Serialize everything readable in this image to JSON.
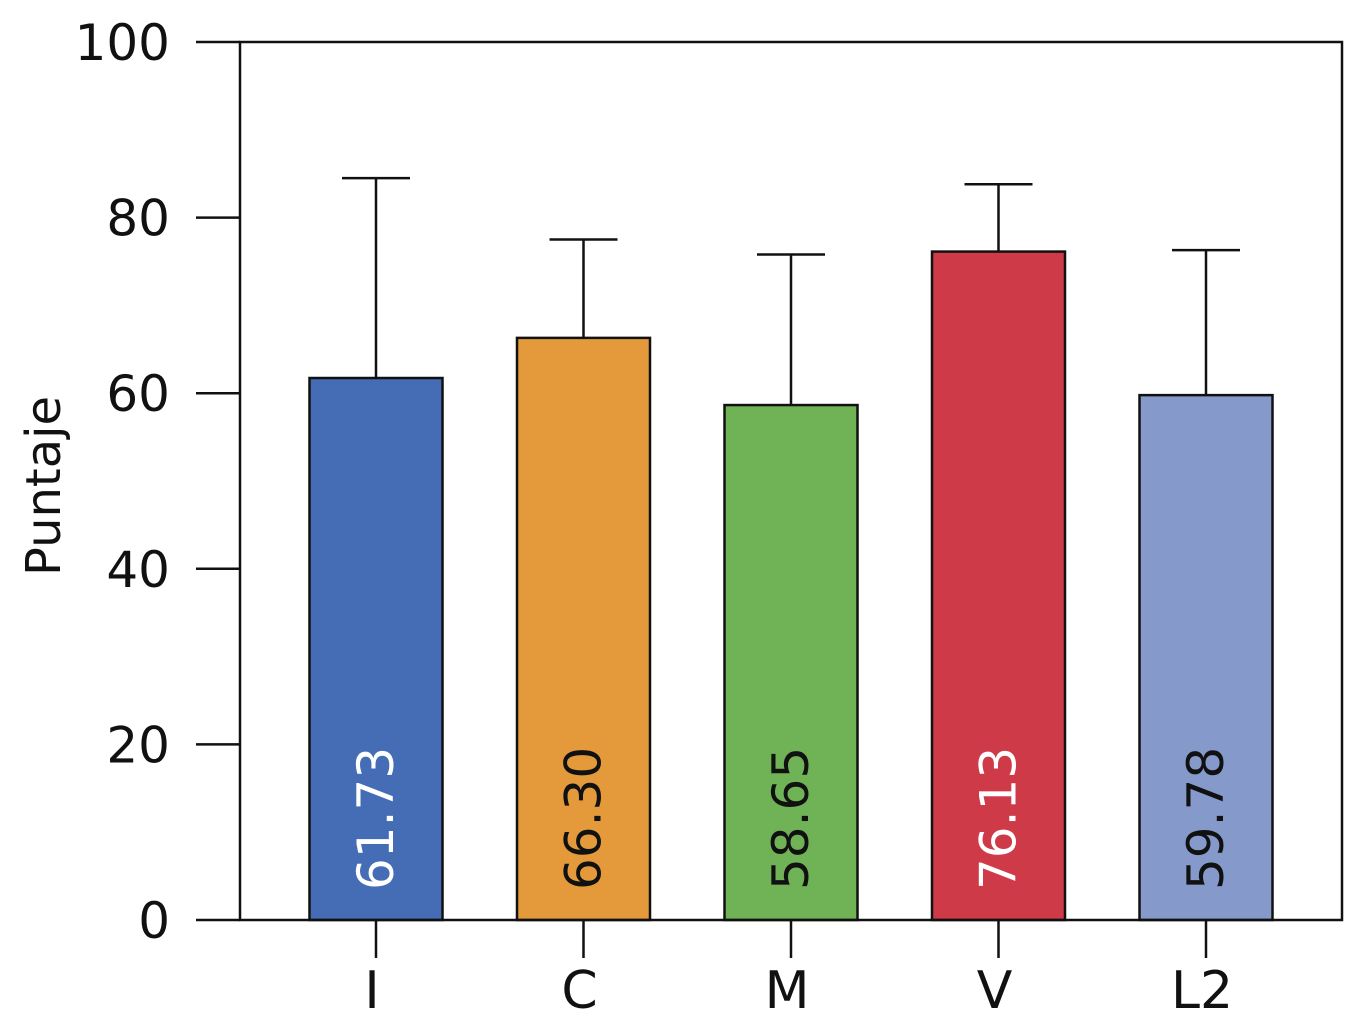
{
  "chart_data": {
    "type": "bar",
    "title": "",
    "xlabel": "",
    "ylabel": "Puntaje",
    "ylim": [
      0,
      100
    ],
    "yticks": [
      "0",
      "20",
      "40",
      "60",
      "80",
      "100"
    ],
    "grid": false,
    "categories": [
      "I",
      "C",
      "M",
      "V",
      "L2"
    ],
    "values": [
      61.73,
      66.3,
      58.65,
      76.13,
      59.78
    ],
    "value_labels": [
      "61.73",
      "66.30",
      "58.65",
      "76.13",
      "59.78"
    ],
    "error_upper": [
      84.5,
      77.5,
      75.8,
      83.8,
      76.3
    ],
    "colors": [
      "#456db5",
      "#e49a3b",
      "#6fb356",
      "#cf3a48",
      "#8599cb"
    ],
    "label_colors": [
      "#ffffff",
      "#111111",
      "#111111",
      "#ffffff",
      "#111111"
    ]
  }
}
